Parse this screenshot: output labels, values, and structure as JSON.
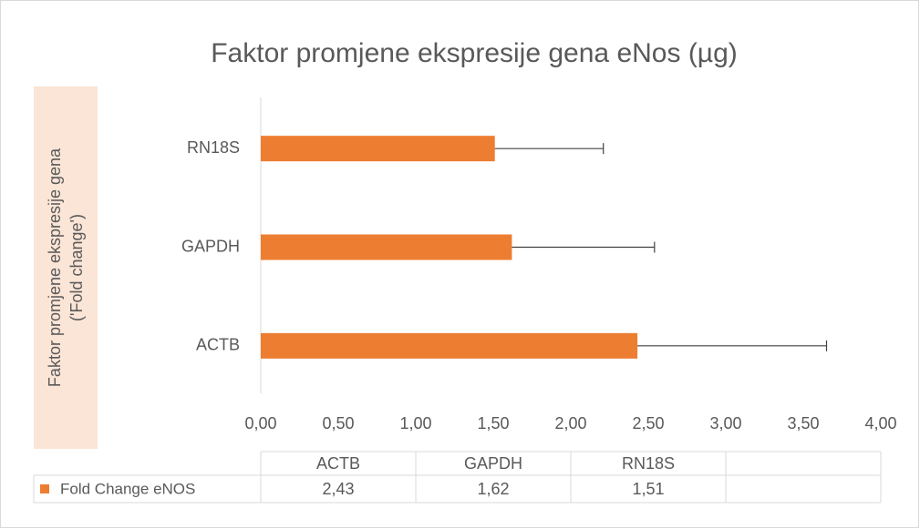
{
  "chart_data": {
    "type": "bar",
    "orientation": "horizontal",
    "title": "Faktor promjene ekspresije gena eNos (µg)",
    "ylabel": [
      "Faktor promjene ekspresije gena",
      "('Fold change')"
    ],
    "categories": [
      "ACTB",
      "GAPDH",
      "RN18S"
    ],
    "series": [
      {
        "name": "Fold Change eNOS",
        "color": "#ed7d31",
        "values": [
          2.43,
          1.62,
          1.51
        ],
        "value_labels": [
          "2,43",
          "1,62",
          "1,51"
        ],
        "errors": [
          1.22,
          0.92,
          0.7
        ]
      }
    ],
    "xlim": [
      0,
      4
    ],
    "xticks": [
      {
        "value": 0,
        "label": "0,00"
      },
      {
        "value": 0.5,
        "label": "0,50"
      },
      {
        "value": 1,
        "label": "1,00"
      },
      {
        "value": 1.5,
        "label": "1,50"
      },
      {
        "value": 2,
        "label": "2,00"
      },
      {
        "value": 2.5,
        "label": "2,50"
      },
      {
        "value": 3,
        "label": "3,00"
      },
      {
        "value": 3.5,
        "label": "3,50"
      },
      {
        "value": 4,
        "label": "4,00"
      }
    ],
    "grid": false,
    "data_table": true
  }
}
